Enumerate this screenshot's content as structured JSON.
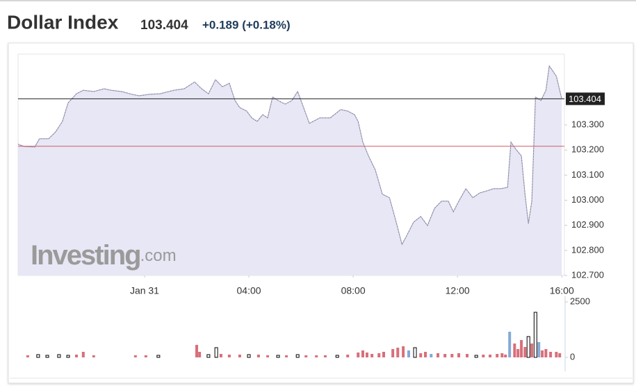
{
  "header": {
    "title": "Dollar Index",
    "price": "103.404",
    "change": "+0.189 (+0.18%)"
  },
  "chart_data": {
    "type": "area",
    "color": "#a9a9c6",
    "fill": "#e7e7f5",
    "x": [
      -4.85,
      -4.61,
      -4.21,
      -4.03,
      -3.68,
      -3.41,
      -3.15,
      -2.93,
      -2.61,
      -2.35,
      -1.95,
      -1.55,
      -1.28,
      -0.88,
      -0.48,
      -0.21,
      0.19,
      0.59,
      1.12,
      1.52,
      1.92,
      2.19,
      2.45,
      2.72,
      2.99,
      3.25,
      3.47,
      3.65,
      3.92,
      4.11,
      4.32,
      4.53,
      4.72,
      4.91,
      5.12,
      5.39,
      5.65,
      5.87,
      6.05,
      6.32,
      6.72,
      7.12,
      7.52,
      7.79,
      8.05,
      8.19,
      8.37,
      8.59,
      8.85,
      9.12,
      9.39,
      9.65,
      9.87,
      10.05,
      10.32,
      10.59,
      10.85,
      11.12,
      11.39,
      11.65,
      11.84,
      12.05,
      12.32,
      12.59,
      12.85,
      13.12,
      13.39,
      13.65,
      13.92,
      14.05,
      14.24,
      14.45,
      14.59,
      14.72,
      14.85,
      14.99,
      15.2,
      15.39,
      15.52,
      15.79,
      16.0
    ],
    "values": [
      103.223,
      103.214,
      103.212,
      103.245,
      103.245,
      103.272,
      103.314,
      103.388,
      103.424,
      103.438,
      103.433,
      103.444,
      103.438,
      103.433,
      103.422,
      103.416,
      103.422,
      103.424,
      103.438,
      103.444,
      103.471,
      103.444,
      103.424,
      103.48,
      103.452,
      103.466,
      103.397,
      103.369,
      103.355,
      103.328,
      103.314,
      103.341,
      103.328,
      103.411,
      103.397,
      103.383,
      103.397,
      103.433,
      103.383,
      103.306,
      103.328,
      103.328,
      103.361,
      103.355,
      103.341,
      103.314,
      103.231,
      103.176,
      103.12,
      103.024,
      103.01,
      102.913,
      102.824,
      102.858,
      102.913,
      102.935,
      102.899,
      102.968,
      102.996,
      102.996,
      102.954,
      102.996,
      103.046,
      103.01,
      103.029,
      103.037,
      103.046,
      103.046,
      103.051,
      103.231,
      103.203,
      103.176,
      103.024,
      102.907,
      102.996,
      103.411,
      103.397,
      103.438,
      103.535,
      103.494,
      103.404
    ],
    "xlim": [
      -4.85,
      16.1
    ],
    "xticks": [
      {
        "value": 0,
        "label": "Jan 31"
      },
      {
        "value": 4,
        "label": "04:00"
      },
      {
        "value": 8,
        "label": "08:00"
      },
      {
        "value": 12,
        "label": "12:00"
      },
      {
        "value": 16,
        "label": "16:00"
      }
    ],
    "ylim": [
      102.7,
      103.582
    ],
    "yticks": [
      {
        "value": 102.7,
        "label": "102.700"
      },
      {
        "value": 102.8,
        "label": "102.800"
      },
      {
        "value": 102.9,
        "label": "102.900"
      },
      {
        "value": 103.0,
        "label": "103.000"
      },
      {
        "value": 103.1,
        "label": "103.100"
      },
      {
        "value": 103.2,
        "label": "103.200"
      },
      {
        "value": 103.3,
        "label": "103.300"
      }
    ],
    "last_price": 103.404,
    "last_price_color": "#222222",
    "previous_close": 103.215,
    "previous_close_color": "#d05a64",
    "watermark": {
      "brand": "Investing",
      "domain": ".com"
    },
    "volume": {
      "x": [
        -4.48,
        -4.08,
        -3.73,
        -3.28,
        -2.93,
        -2.61,
        -2.35,
        -1.95,
        -0.35,
        0.05,
        0.53,
        2.0,
        2.11,
        2.45,
        2.75,
        2.93,
        3.25,
        3.65,
        4.0,
        4.37,
        4.72,
        5.12,
        5.44,
        5.87,
        6.19,
        6.59,
        6.93,
        7.39,
        7.79,
        8.19,
        8.37,
        8.53,
        8.72,
        8.99,
        9.17,
        9.52,
        9.71,
        9.92,
        10.13,
        10.37,
        10.59,
        10.77,
        10.99,
        11.25,
        11.52,
        11.79,
        12.05,
        12.37,
        12.72,
        12.99,
        13.25,
        13.52,
        13.71,
        13.84,
        14.0,
        14.19,
        14.32,
        14.45,
        14.59,
        14.72,
        14.85,
        14.99,
        15.12,
        15.25,
        15.39,
        15.57,
        15.79,
        15.92
      ],
      "values": [
        94,
        125,
        94,
        125,
        94,
        125,
        250,
        94,
        94,
        94,
        94,
        563,
        250,
        125,
        438,
        156,
        125,
        125,
        125,
        125,
        94,
        94,
        94,
        125,
        94,
        94,
        94,
        94,
        125,
        219,
        313,
        219,
        156,
        188,
        250,
        375,
        438,
        500,
        313,
        438,
        188,
        250,
        156,
        188,
        156,
        156,
        188,
        156,
        94,
        125,
        125,
        156,
        188,
        125,
        1156,
        625,
        375,
        781,
        469,
        938,
        625,
        2031,
        688,
        313,
        375,
        250,
        250,
        188
      ],
      "colors": [
        "#d86f7a",
        "#000000",
        "#000000",
        "#000000",
        "#000000",
        "#d86f7a",
        "#d86f7a",
        "#d86f7a",
        "#d86f7a",
        "#d86f7a",
        "#000000",
        "#d86f7a",
        "#d86f7a",
        "#000000",
        "#000000",
        "#d86f7a",
        "#d86f7a",
        "#d86f7a",
        "#000000",
        "#d86f7a",
        "#d86f7a",
        "#000000",
        "#d86f7a",
        "#000000",
        "#d86f7a",
        "#d86f7a",
        "#d86f7a",
        "#000000",
        "#d86f7a",
        "#d86f7a",
        "#d86f7a",
        "#d86f7a",
        "#d86f7a",
        "#d86f7a",
        "#d86f7a",
        "#d86f7a",
        "#d86f7a",
        "#d86f7a",
        "#84a9d6",
        "#000000",
        "#d86f7a",
        "#d86f7a",
        "#84a9d6",
        "#d86f7a",
        "#d86f7a",
        "#d86f7a",
        "#d86f7a",
        "#d86f7a",
        "#000000",
        "#d86f7a",
        "#d86f7a",
        "#d86f7a",
        "#d86f7a",
        "#d86f7a",
        "#84a9d6",
        "#d86f7a",
        "#d86f7a",
        "#d86f7a",
        "#d86f7a",
        "#000000",
        "#d86f7a",
        "#000000",
        "#84a9d6",
        "#d86f7a",
        "#d86f7a",
        "#d86f7a",
        "#d86f7a",
        "#d86f7a"
      ],
      "ylim": [
        0,
        2500
      ],
      "yticks": [
        0,
        2500
      ]
    }
  }
}
